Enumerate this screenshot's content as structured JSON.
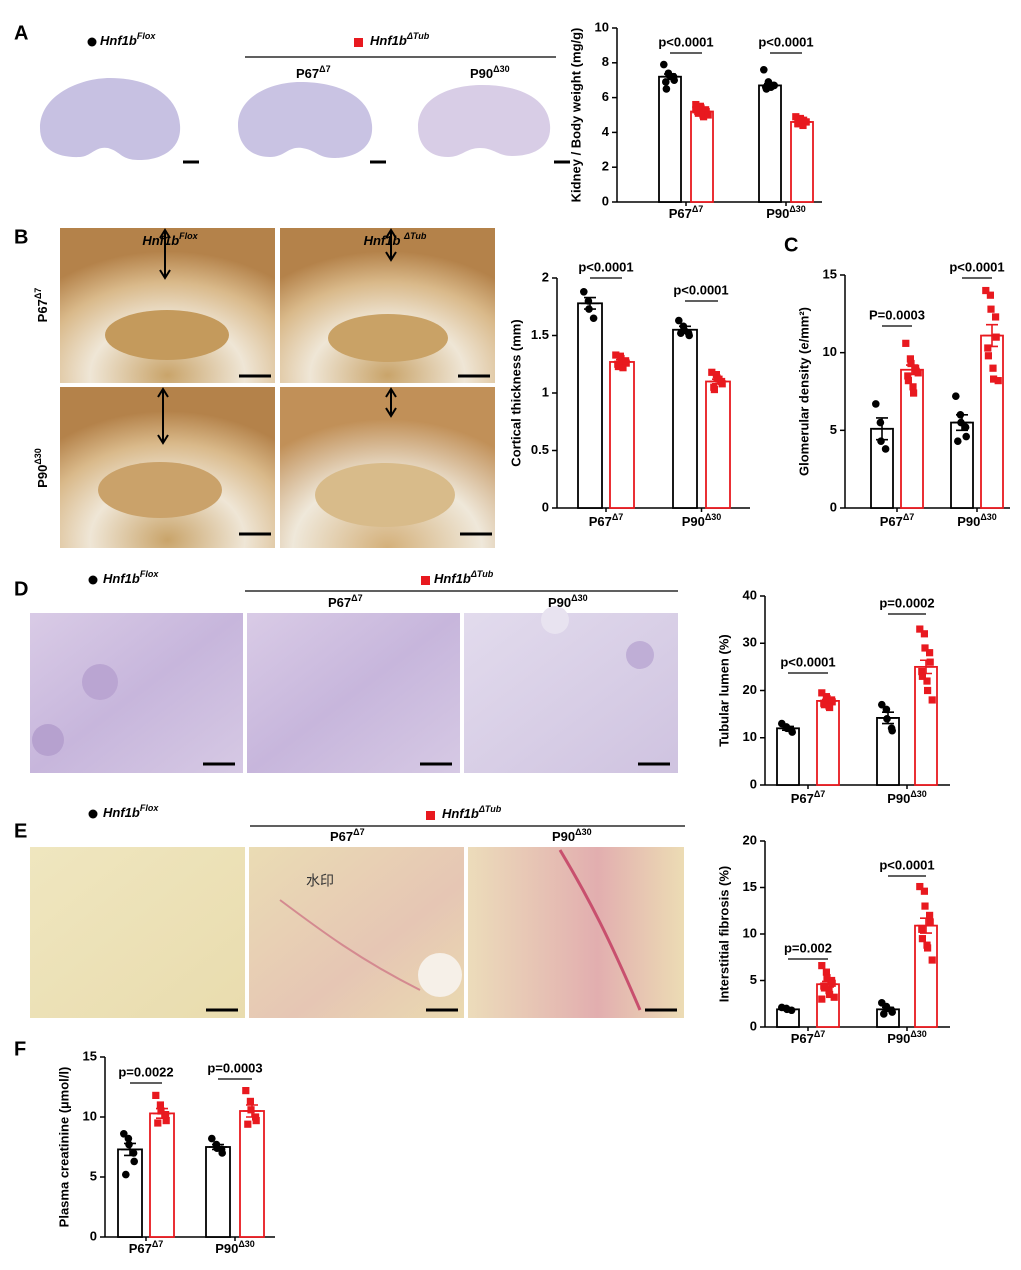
{
  "chart_data": [
    {
      "type": "bar",
      "ylabel": "Kidney / Body weight (mg/g)",
      "categories": [
        "P67",
        "P90"
      ],
      "category_sup": [
        "Δ7",
        "Δ30"
      ],
      "ylim": [
        0,
        10
      ],
      "yticks": [
        0,
        2,
        4,
        6,
        8,
        10
      ],
      "annotations": [
        "p<0.0001",
        "p<0.0001"
      ],
      "series": [
        {
          "color": "#000000",
          "values": [
            7.2,
            6.7
          ],
          "errors": [
            0.15,
            0.1
          ],
          "points": [
            [
              7.9,
              7.4,
              7.3,
              7.2,
              7.0,
              6.9,
              6.5
            ],
            [
              7.6,
              6.9,
              6.8,
              6.7,
              6.7,
              6.6,
              6.5,
              6.6
            ]
          ]
        },
        {
          "color": "#e8191f",
          "values": [
            5.2,
            4.6
          ],
          "errors": [
            0.08,
            0.06
          ],
          "points": [
            [
              5.6,
              5.5,
              5.4,
              5.3,
              5.2,
              5.2,
              5.1,
              5.0,
              4.9,
              5.0,
              5.3
            ],
            [
              4.9,
              4.8,
              4.7,
              4.6,
              4.6,
              4.5,
              4.5,
              4.4,
              4.7
            ]
          ]
        }
      ]
    },
    {
      "type": "bar",
      "ylabel": "Cortical thickness (mm)",
      "categories": [
        "P67",
        "P90"
      ],
      "category_sup": [
        "Δ7",
        "Δ30"
      ],
      "ylim": [
        0,
        2
      ],
      "yticks": [
        0,
        0.5,
        1.0,
        1.5,
        2
      ],
      "annotations": [
        "p<0.0001",
        "p<0.0001"
      ],
      "series": [
        {
          "color": "#000000",
          "values": [
            1.78,
            1.55
          ],
          "errors": [
            0.05,
            0.03
          ],
          "points": [
            [
              1.88,
              1.8,
              1.73,
              1.65
            ],
            [
              1.63,
              1.58,
              1.55,
              1.52,
              1.5,
              1.52
            ]
          ]
        },
        {
          "color": "#e8191f",
          "values": [
            1.27,
            1.1
          ],
          "errors": [
            0.02,
            0.02
          ],
          "points": [
            [
              1.33,
              1.32,
              1.3,
              1.28,
              1.26,
              1.25,
              1.23,
              1.22
            ],
            [
              1.18,
              1.16,
              1.13,
              1.1,
              1.08,
              1.05,
              1.03,
              1.12
            ]
          ]
        }
      ]
    },
    {
      "type": "bar",
      "ylabel": "Glomerular density (e/mm²)",
      "categories": [
        "P67",
        "P90"
      ],
      "category_sup": [
        "Δ7",
        "Δ30"
      ],
      "ylim": [
        0,
        15
      ],
      "yticks": [
        0,
        5,
        10,
        15
      ],
      "annotations": [
        "P=0.0003",
        "p<0.0001"
      ],
      "series": [
        {
          "color": "#000000",
          "values": [
            5.1,
            5.5
          ],
          "errors": [
            0.7,
            0.5
          ],
          "points": [
            [
              6.7,
              5.5,
              4.3,
              3.8
            ],
            [
              7.2,
              6.0,
              5.5,
              5.2,
              4.6,
              4.3
            ]
          ]
        },
        {
          "color": "#e8191f",
          "values": [
            8.9,
            11.1
          ],
          "errors": [
            0.3,
            0.7
          ],
          "points": [
            [
              10.6,
              9.6,
              9.3,
              9.0,
              8.8,
              8.5,
              8.2,
              7.8,
              7.4,
              8.7
            ],
            [
              14.0,
              13.7,
              12.8,
              12.3,
              11.0,
              10.3,
              9.8,
              9.0,
              8.3,
              8.2
            ]
          ]
        }
      ]
    },
    {
      "type": "bar",
      "ylabel": "Tubular lumen (%)",
      "categories": [
        "P67",
        "P90"
      ],
      "category_sup": [
        "Δ7",
        "Δ30"
      ],
      "ylim": [
        0,
        40
      ],
      "yticks": [
        0,
        10,
        20,
        30,
        40
      ],
      "annotations": [
        "p<0.0001",
        "p=0.0002"
      ],
      "series": [
        {
          "color": "#000000",
          "values": [
            12,
            14.2
          ],
          "errors": [
            0.4,
            1.2
          ],
          "points": [
            [
              13,
              12.3,
              12,
              11.6,
              11.2
            ],
            [
              17,
              16,
              14,
              12,
              11.5
            ]
          ]
        },
        {
          "color": "#e8191f",
          "values": [
            17.8,
            25
          ],
          "errors": [
            0.3,
            1.4
          ],
          "points": [
            [
              19.5,
              18.7,
              18.3,
              18,
              17.6,
              17.3,
              17,
              16.7,
              16.4
            ],
            [
              33,
              32,
              29,
              28,
              26,
              24,
              23,
              22,
              20,
              18
            ]
          ]
        }
      ]
    },
    {
      "type": "bar",
      "ylabel": "Interstitial fibrosis (%)",
      "categories": [
        "P67",
        "P90"
      ],
      "category_sup": [
        "Δ7",
        "Δ30"
      ],
      "ylim": [
        0,
        20
      ],
      "yticks": [
        0,
        5,
        10,
        15,
        20
      ],
      "annotations": [
        "p=0.002",
        "p<0.0001"
      ],
      "series": [
        {
          "color": "#000000",
          "values": [
            1.9,
            1.9
          ],
          "errors": [
            0.1,
            0.2
          ],
          "points": [
            [
              2.1,
              2.0,
              1.9,
              1.8
            ],
            [
              2.6,
              2.2,
              2.0,
              1.8,
              1.6,
              1.4
            ]
          ]
        },
        {
          "color": "#e8191f",
          "values": [
            4.6,
            10.9
          ],
          "errors": [
            0.3,
            0.8
          ],
          "points": [
            [
              6.6,
              5.9,
              5.3,
              5.0,
              4.7,
              4.4,
              4.2,
              3.9,
              3.5,
              3.2,
              3.0
            ],
            [
              15.1,
              14.6,
              13.0,
              12.0,
              11.3,
              10.5,
              9.5,
              8.8,
              8.5,
              7.2
            ]
          ]
        }
      ]
    },
    {
      "type": "bar",
      "ylabel": "Plasma creatinine (µmol/l)",
      "categories": [
        "P67",
        "P90"
      ],
      "category_sup": [
        "Δ7",
        "Δ30"
      ],
      "ylim": [
        0,
        15
      ],
      "yticks": [
        0,
        5,
        10,
        15
      ],
      "annotations": [
        "p=0.0022",
        "p=0.0003"
      ],
      "series": [
        {
          "color": "#000000",
          "values": [
            7.3,
            7.5
          ],
          "errors": [
            0.5,
            0.2
          ],
          "points": [
            [
              8.6,
              8.2,
              7.7,
              7.0,
              6.3,
              5.2
            ],
            [
              8.2,
              7.7,
              7.4,
              7.3,
              7.0
            ]
          ]
        },
        {
          "color": "#e8191f",
          "values": [
            10.3,
            10.5
          ],
          "errors": [
            0.4,
            0.5
          ],
          "points": [
            [
              11.8,
              11.0,
              10.5,
              10.2,
              9.7,
              9.5
            ],
            [
              12.2,
              11.3,
              10.6,
              10.0,
              9.7,
              9.4
            ]
          ]
        }
      ]
    }
  ],
  "figure": {
    "panel_labels": [
      "A",
      "B",
      "C",
      "D",
      "E",
      "F"
    ],
    "A": {
      "control": {
        "base": "Hnf1b",
        "sup": "Flox"
      },
      "mutant": {
        "base": "Hnf1b",
        "sup": "ΔTub"
      },
      "groups": [
        {
          "base": "P67",
          "sup": "Δ7"
        },
        {
          "base": "P90",
          "sup": "Δ30"
        }
      ]
    },
    "B": {
      "columns": [
        {
          "base": "Hnf1b",
          "sup": "Flox"
        },
        {
          "base": "Hnf1b ",
          "sup": "ΔTub"
        }
      ],
      "rows": [
        {
          "base": "P67",
          "sup": "Δ7"
        },
        {
          "base": "P90",
          "sup": "Δ30"
        }
      ]
    },
    "D": {
      "control": {
        "base": "Hnf1b",
        "sup": "Flox"
      },
      "mutant": {
        "base": "Hnf1b",
        "sup": "ΔTub"
      },
      "groups": [
        {
          "base": "P67",
          "sup": "Δ7"
        },
        {
          "base": "P90",
          "sup": "Δ30"
        }
      ]
    },
    "E": {
      "control": {
        "base": "Hnf1b",
        "sup": "Flox"
      },
      "mutant": {
        "base": "Hnf1b",
        "sup": "ΔTub"
      },
      "groups": [
        {
          "base": "P67",
          "sup": "Δ7"
        },
        {
          "base": "P90",
          "sup": "Δ30"
        }
      ],
      "watermark": "水印"
    }
  }
}
